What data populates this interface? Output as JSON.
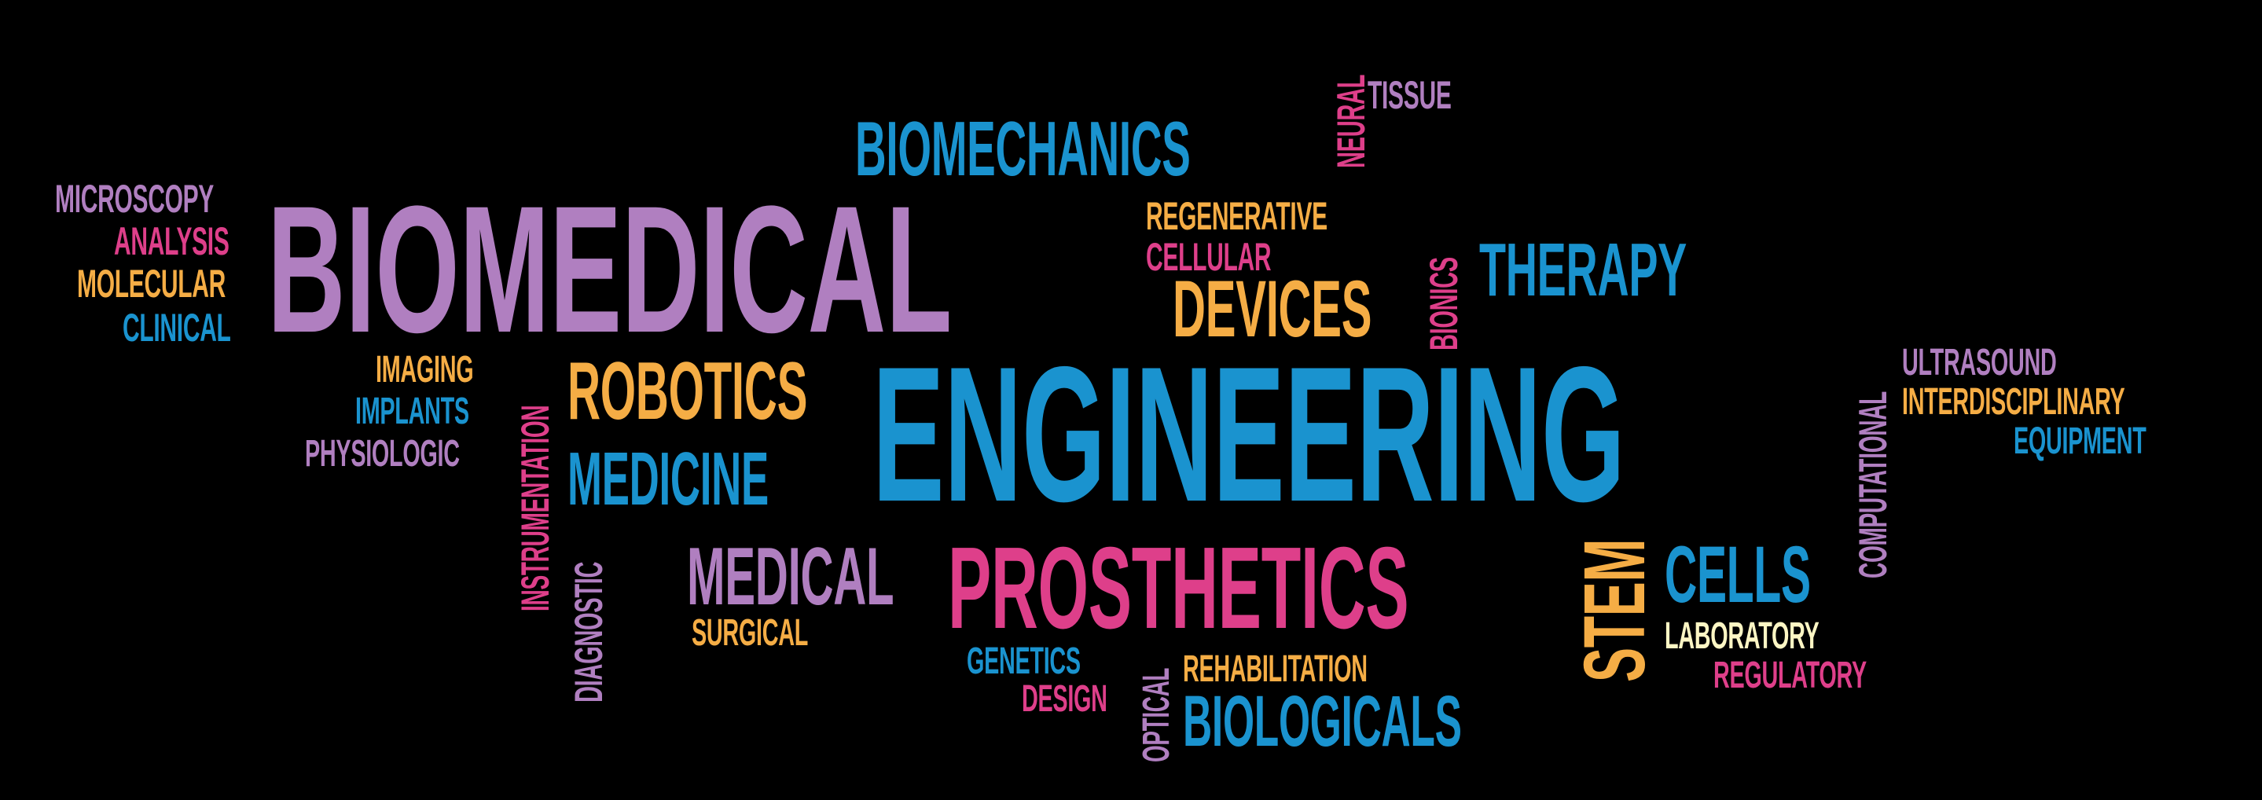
{
  "colors": {
    "background": "#000000",
    "purple": "#b07fc0",
    "blue": "#1a93cf",
    "pink": "#de3f8a",
    "orange": "#f5ad45",
    "cream": "#fdf6c4"
  },
  "words": {
    "biomedical": "BIOMEDICAL",
    "engineering": "ENGINEERING",
    "prosthetics": "PROSTHETICS",
    "biomechanics": "BIOMECHANICS",
    "devices": "DEVICES",
    "robotics": "ROBOTICS",
    "medicine": "MEDICINE",
    "medical": "MEDICAL",
    "therapy": "THERAPY",
    "cells": "CELLS",
    "stem": "STEM",
    "biologicals": "BIOLOGICALS",
    "microscopy": "MICROSCOPY",
    "analysis": "ANALYSIS",
    "molecular": "MOLECULAR",
    "clinical": "CLINICAL",
    "imaging": "IMAGING",
    "implants": "IMPLANTS",
    "physiologic": "PHYSIOLOGIC",
    "instrumentation": "INSTRUMENTATION",
    "diagnostic": "DIAGNOSTIC",
    "surgical": "SURGICAL",
    "genetics": "GENETICS",
    "design": "DESIGN",
    "optical": "OPTICAL",
    "rehabilitation": "REHABILITATION",
    "laboratory": "LABORATORY",
    "regulatory": "REGULATORY",
    "computational": "COMPUTATIONAL",
    "ultrasound": "ULTRASOUND",
    "interdisciplinary": "INTERDISCIPLINARY",
    "equipment": "EQUIPMENT",
    "regenerative": "REGENERATIVE",
    "cellular": "CELLULAR",
    "bionics": "BIONICS",
    "neural": "NEURAL",
    "tissue": "TISSUE"
  }
}
